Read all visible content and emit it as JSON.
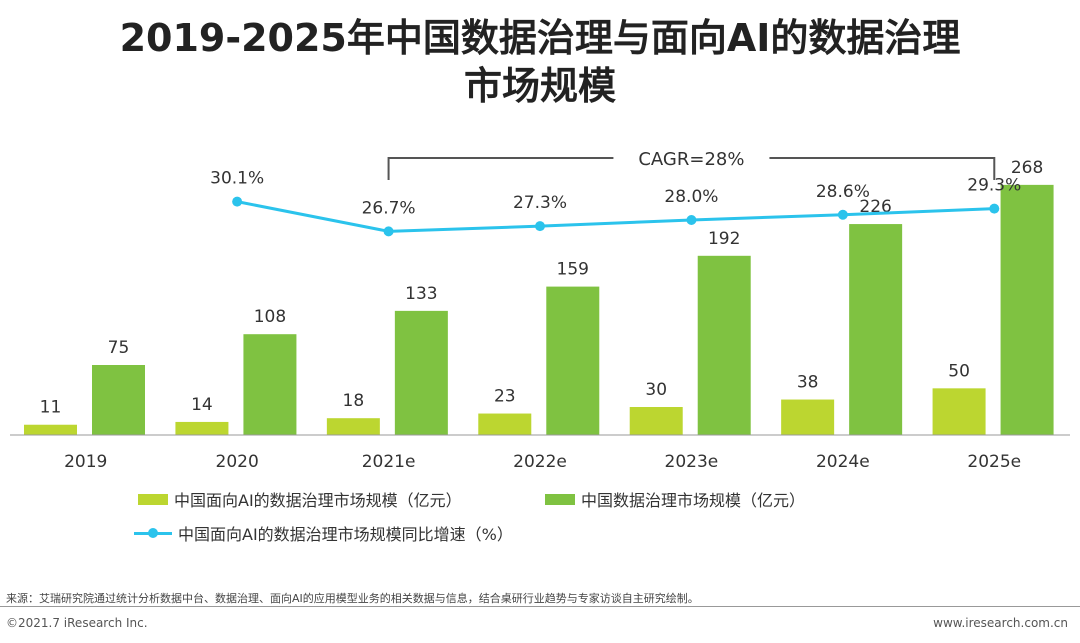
{
  "title": {
    "line1": "2019-2025年中国数据治理与面向AI的数据治理",
    "line2": "市场规模"
  },
  "chart_data": {
    "type": "bar",
    "categories": [
      "2019",
      "2020",
      "2021e",
      "2022e",
      "2023e",
      "2024e",
      "2025e"
    ],
    "series": [
      {
        "name": "中国面向AI的数据治理市场规模（亿元）",
        "type": "bar",
        "values": [
          11,
          14,
          18,
          23,
          30,
          38,
          50
        ],
        "color": "#bcd630"
      },
      {
        "name": "中国数据治理市场规模（亿元）",
        "type": "bar",
        "values": [
          75,
          108,
          133,
          159,
          192,
          226,
          268
        ],
        "color": "#7fc241"
      },
      {
        "name": "中国面向AI的数据治理市场规模同比增速（%）",
        "type": "line",
        "x": [
          "2020",
          "2021e",
          "2022e",
          "2023e",
          "2024e",
          "2025e"
        ],
        "values": [
          30.1,
          26.7,
          27.3,
          28.0,
          28.6,
          29.3
        ],
        "labels": [
          "30.1%",
          "26.7%",
          "27.3%",
          "28.0%",
          "28.6%",
          "29.3%"
        ],
        "color": "#2bc3ec"
      }
    ],
    "bar_ylim": [
      0,
      300
    ],
    "line_ylim": [
      20,
      32
    ],
    "annotation": {
      "text": "CAGR=28%",
      "from": "2021e",
      "to": "2025e"
    },
    "legend_placement": "bottom",
    "grid": false
  },
  "source": "来源：艾瑞研究院通过统计分析数据中台、数据治理、面向AI的应用模型业务的相关数据与信息，结合桌研行业趋势与专家访谈自主研究绘制。",
  "footer": {
    "copyright": "©2021.7 iResearch Inc.",
    "website": "www.iresearch.com.cn"
  }
}
